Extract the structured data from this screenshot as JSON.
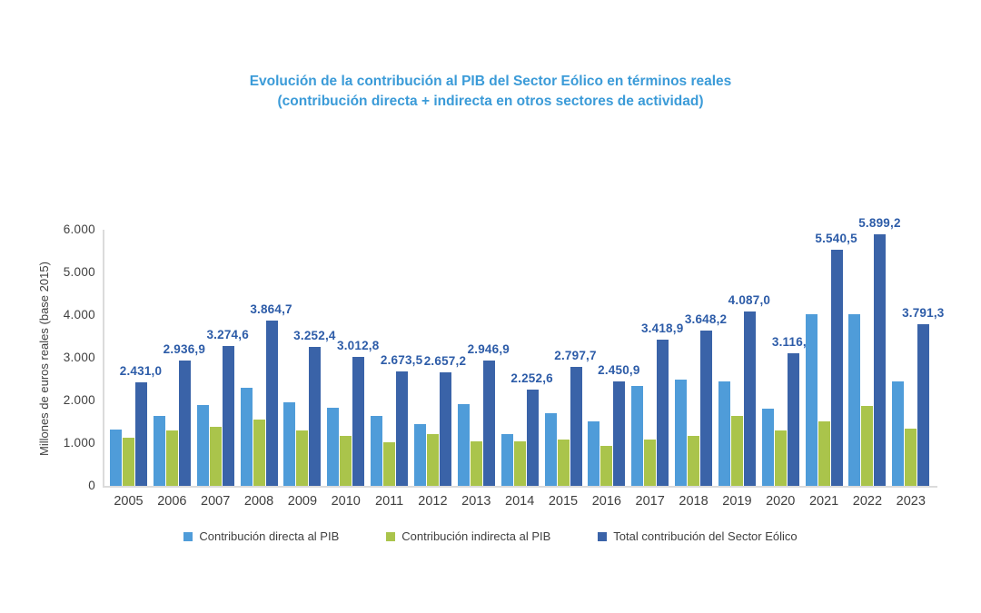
{
  "title": {
    "line1": "Evolución de la contribución al PIB del Sector Eólico en términos reales",
    "line2": "(contribución directa + indirecta en otros sectores de actividad)"
  },
  "y_axis": {
    "label": "Millones de euros reales (base 2015)",
    "tick_labels": [
      "0",
      "1.000",
      "2.000",
      "3.000",
      "4.000",
      "5.000",
      "6.000"
    ]
  },
  "colors": {
    "title": "#3B9BD8",
    "direct_bar": "#4F9CD9",
    "indirect_bar": "#AAC44B",
    "total_bar": "#3A63A8",
    "value_label": "#2D5CA8",
    "axis_line": "#DBDBDB",
    "axis_text": "#3F3F3F"
  },
  "chart_data": {
    "type": "bar",
    "title": "Evolución de la contribución al PIB del Sector Eólico en términos reales (contribución directa + indirecta en otros sectores de actividad)",
    "xlabel": "",
    "ylabel": "Millones de euros reales (base 2015)",
    "ylim": [
      0,
      6000
    ],
    "yticks": [
      0,
      1000,
      2000,
      3000,
      4000,
      5000,
      6000
    ],
    "grid": false,
    "legend_position": "bottom",
    "categories": [
      "2005",
      "2006",
      "2007",
      "2008",
      "2009",
      "2010",
      "2011",
      "2012",
      "2013",
      "2014",
      "2015",
      "2016",
      "2017",
      "2018",
      "2019",
      "2020",
      "2021",
      "2022",
      "2023"
    ],
    "series": [
      {
        "key": "direct",
        "name": "Contribución directa al PIB",
        "color": "#4F9CD9",
        "values_estimated": true,
        "values": [
          1310,
          1630,
          1900,
          2305,
          1960,
          1840,
          1645,
          1445,
          1905,
          1215,
          1705,
          1505,
          2340,
          2485,
          2450,
          1810,
          4020,
          4030,
          2445
        ]
      },
      {
        "key": "indirect",
        "name": "Contribución indirecta al PIB",
        "color": "#AAC44B",
        "values_estimated": true,
        "values": [
          1121,
          1307,
          1375,
          1560,
          1292,
          1173,
          1029,
          1212,
          1042,
          1038,
          1093,
          946,
          1079,
          1163,
          1637,
          1307,
          1521,
          1869,
          1346
        ]
      },
      {
        "key": "total",
        "name": "Total contribución del Sector Eólico",
        "color": "#3A63A8",
        "values": [
          2431.0,
          2936.9,
          3274.6,
          3864.7,
          3252.4,
          3012.8,
          2673.5,
          2657.2,
          2946.9,
          2252.6,
          2797.7,
          2450.9,
          3418.9,
          3648.2,
          4087.0,
          3116.6,
          5540.5,
          5899.2,
          3791.3
        ],
        "labels": [
          "2.431,0",
          "2.936,9",
          "3.274,6",
          "3.864,7",
          "3.252,4",
          "3.012,8",
          "2.673,5",
          "2.657,2",
          "2.946,9",
          "2.252,6",
          "2.797,7",
          "2.450,9",
          "3.418,9",
          "3.648,2",
          "4.087,0",
          "3.116,6",
          "5.540,5",
          "5.899,2",
          "3.791,3"
        ]
      }
    ]
  }
}
